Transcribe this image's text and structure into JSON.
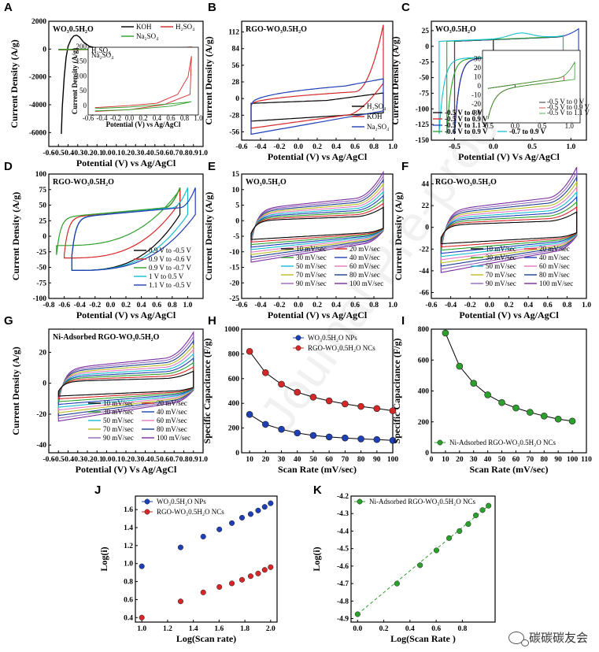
{
  "watermark": {
    "text": "碳碳碳友会",
    "icon": "wechat-icon",
    "diagonal": "Journal Pre-proof"
  },
  "chart_data": [
    {
      "id": "A",
      "type": "line",
      "title": "WO3.0.5H2O",
      "title_display": "WO₃0.5H₂O",
      "xlabel": "Potential (V) vs Ag/AgCl",
      "ylabel": "Current Density (A/g)",
      "xlim": [
        -0.6,
        1.0
      ],
      "ylim": [
        -7000,
        2000
      ],
      "xticks": [
        -0.6,
        -0.5,
        -0.4,
        -0.3,
        -0.2,
        -0.1,
        0.0,
        0.1,
        0.2,
        0.3,
        0.4,
        0.5,
        0.6,
        0.7,
        0.8,
        0.9,
        1.0
      ],
      "yticks": [
        -6000,
        -4000,
        -2000,
        0,
        2000
      ],
      "legend": [
        "KOH",
        "H2SO4",
        "Na2SO4"
      ],
      "legend_display": [
        "KOH",
        "H₂SO₄",
        "Na₂SO₄"
      ],
      "colors": [
        "#000000",
        "#d62728",
        "#2ca02c"
      ],
      "inset": {
        "xlabel": "Potential (V) vs Ag/AgCl",
        "ylabel": "Current Density (A/g)",
        "xlim": [
          -0.6,
          1.0
        ],
        "ylim": [
          -30,
          200
        ],
        "xticks": [
          -0.6,
          -0.4,
          -0.2,
          0.0,
          0.2,
          0.4,
          0.6,
          0.8,
          1.0
        ],
        "yticks": [
          0,
          50,
          100,
          150,
          200
        ],
        "legend": [
          "H2SO4",
          "Na2SO4"
        ],
        "legend_display": [
          "H₂SO₄",
          "Na₂SO₄"
        ]
      }
    },
    {
      "id": "B",
      "type": "line",
      "title": "RGO-WO3.0.5H2O",
      "title_display": "RGO-WO₃0.5H₂O",
      "xlabel": "Potential (V) vs Ag/AgCl",
      "ylabel": "Current Density (A/g)",
      "xlim": [
        -0.6,
        1.0
      ],
      "ylim": [
        -70,
        130
      ],
      "xticks": [
        -0.6,
        -0.4,
        -0.2,
        0.0,
        0.2,
        0.4,
        0.6,
        0.8,
        1.0
      ],
      "yticks": [
        -56,
        -28,
        0,
        28,
        56,
        84,
        112
      ],
      "legend": [
        "H2SO4",
        "KOH",
        "Na2SO4"
      ],
      "legend_display": [
        "H₂SO₄",
        "KOH",
        "Na₂SO₄"
      ],
      "colors": [
        "#000000",
        "#d62728",
        "#1f3fb5"
      ]
    },
    {
      "id": "C",
      "type": "line",
      "title": "WO3.0.5H2O",
      "title_display": "WO₃0.5H₂O",
      "xlabel": "Potential (V) Vs Ag/AgCl",
      "ylabel": "Current Density (A/g)",
      "xlim": [
        -0.8,
        1.2
      ],
      "ylim": [
        -150,
        40
      ],
      "xticks": [
        -0.5,
        0.0,
        0.5,
        1.0
      ],
      "yticks": [
        -150,
        -125,
        -100,
        -75,
        -50,
        -25,
        0,
        25
      ],
      "legend": [
        "-0.5 V to 0 V",
        "-0.5 V to 0.9 V",
        "-0.5 V to 1.1 V",
        "-0.6 V to 0.9 V",
        "-0.7 to 0.9 V"
      ],
      "colors": [
        "#000000",
        "#d62728",
        "#1f3fb5",
        "#2ca02c",
        "#17becf"
      ],
      "inset": {
        "xlim": [
          -0.6,
          1.2
        ],
        "ylim": [
          -40,
          40
        ],
        "xticks": [
          -0.5,
          0.0,
          0.5,
          1.0
        ],
        "yticks": [
          -30,
          -20,
          -10,
          0,
          10,
          20,
          30
        ],
        "legend": [
          "-0.5 V to 0 V",
          "-0.5 V to 0.9 V",
          "-0.5 V to 1.1 V"
        ]
      }
    },
    {
      "id": "D",
      "type": "line",
      "title": "RGO-WO3.0.5H2O",
      "title_display": "RGO-WO₃0.5H₂O",
      "xlabel": "Potential (V) vs Ag/AgCl",
      "ylabel": "Current Density (A/g)",
      "xlim": [
        -0.8,
        1.2
      ],
      "ylim": [
        -100,
        100
      ],
      "xticks": [
        -0.8,
        -0.6,
        -0.4,
        -0.2,
        0.0,
        0.2,
        0.4,
        0.6,
        0.8,
        1.0
      ],
      "yticks": [
        -100,
        -75,
        -50,
        -25,
        0,
        25,
        50,
        75,
        100
      ],
      "legend": [
        "0.9 V to -0.5 V",
        "0.9 V to -0.6 V",
        "0.9 V to -0.7 V",
        "1 V to 0.5 V",
        "1.1 V to -0.5 V"
      ],
      "colors": [
        "#000000",
        "#d62728",
        "#2ca02c",
        "#17becf",
        "#1f3fb5"
      ]
    },
    {
      "id": "E",
      "type": "line",
      "title": "WO3.0.5H2O",
      "title_display": "WO₃0.5H₂O",
      "xlabel": "Potential (V) vs Ag/AgCl",
      "ylabel": "Current Density (A/g)",
      "xlim": [
        -0.6,
        1.0
      ],
      "ylim": [
        -25,
        15
      ],
      "xticks": [
        -0.6,
        -0.4,
        -0.2,
        0.0,
        0.2,
        0.4,
        0.6,
        0.8,
        1.0
      ],
      "yticks": [
        -25,
        -20,
        -15,
        -10,
        -5,
        0,
        5,
        10,
        15
      ],
      "legend": [
        "10 mV/sec",
        "20 mV/sec",
        "30 mV/sec",
        "40 mV/sec",
        "50 mV/sec",
        "60 mV/sec",
        "70 mV/sec",
        "80 mV/sec",
        "90 mV/sec",
        "100 mV/sec"
      ]
    },
    {
      "id": "F",
      "type": "line",
      "title": "RGO-WO3.0.5H2O",
      "title_display": "RGO-WO₃0.5H₂O",
      "xlabel": "Potential (V) vs Ag/AgCl",
      "ylabel": "Current Density (A/g)",
      "xlim": [
        -0.6,
        1.0
      ],
      "ylim": [
        -72,
        54
      ],
      "xticks": [
        -0.6,
        -0.4,
        -0.2,
        0.0,
        0.2,
        0.4,
        0.6,
        0.8,
        1.0
      ],
      "yticks": [
        -66,
        -44,
        -22,
        0,
        22,
        44
      ],
      "legend": [
        "10 mV/sec",
        "20 mV/sec",
        "30 mV/sec",
        "40 mV/sec",
        "50 mV/sec",
        "60 mV/sec",
        "70 mV/sec",
        "80 mV/sec",
        "90 mV/sec",
        "100 mV/sec"
      ]
    },
    {
      "id": "G",
      "type": "line",
      "title": "Ni-Adsorbed RGO-WO3.0.5H2O",
      "title_display": "Ni-Adsorbed RGO-WO₃0.5H₂O",
      "xlabel": "Potential (V) Vs Ag/AgCl",
      "ylabel": "Current Density (A/g)",
      "xlim": [
        -0.6,
        1.0
      ],
      "ylim": [
        -45,
        35
      ],
      "xticks": [
        -0.6,
        -0.5,
        -0.4,
        -0.3,
        -0.2,
        -0.1,
        0.0,
        0.1,
        0.2,
        0.3,
        0.4,
        0.5,
        0.6,
        0.7,
        0.8,
        0.9,
        1.0
      ],
      "yticks": [
        -40,
        -20,
        0,
        20
      ],
      "legend": [
        "10 mV/sec",
        "20 mV/sec",
        "30 mV/sec",
        "40 mV/sec",
        "50 mV/sec",
        "60 mV/sec",
        "70 mV/sec",
        "80 mV/sec",
        "90 mV/sec",
        "100 mV/sec"
      ]
    },
    {
      "id": "H",
      "type": "line",
      "xlabel": "Scan Rate (mV/sec)",
      "ylabel": "Specific Capacitance (F/g)",
      "xlim": [
        5,
        100
      ],
      "ylim": [
        0,
        1000
      ],
      "xticks": [
        10,
        20,
        30,
        40,
        50,
        60,
        70,
        80,
        90,
        100
      ],
      "yticks": [
        0,
        200,
        400,
        600,
        800,
        1000
      ],
      "x": [
        10,
        20,
        30,
        40,
        50,
        60,
        70,
        80,
        90,
        100
      ],
      "series": [
        {
          "name": "WO3.0.5H2O NPs",
          "name_display": "WO₃0.5H₂O NPs",
          "color": "#1f3fb5",
          "values": [
            310,
            230,
            190,
            160,
            140,
            128,
            120,
            112,
            107,
            100
          ]
        },
        {
          "name": "RGO-WO3.0.5H2O NCs",
          "name_display": "RGO-WO₃0.5H₂O NCs",
          "color": "#d62728",
          "values": [
            820,
            648,
            555,
            490,
            450,
            420,
            395,
            375,
            358,
            340
          ]
        }
      ]
    },
    {
      "id": "I",
      "type": "line",
      "xlabel": "Scan Rate (mV/sec)",
      "ylabel": "Specific Capacitance (F/g)",
      "xlim": [
        0,
        110
      ],
      "ylim": [
        0,
        800
      ],
      "xticks": [
        0,
        10,
        20,
        30,
        40,
        50,
        60,
        70,
        80,
        90,
        100,
        110
      ],
      "yticks": [
        0,
        200,
        400,
        600,
        800
      ],
      "x": [
        10,
        20,
        30,
        40,
        50,
        60,
        70,
        80,
        90,
        100
      ],
      "series": [
        {
          "name": "Ni-Adsorbed RGO-WO3.0.5H2O NCs",
          "name_display": "Ni-Adsorbed RGO-WO₃0.5H₂O NCs",
          "color": "#2ca02c",
          "values": [
            775,
            560,
            450,
            375,
            325,
            290,
            262,
            238,
            218,
            205
          ]
        }
      ]
    },
    {
      "id": "J",
      "type": "scatter",
      "xlabel": "Log(Scan rate)",
      "ylabel": "Log(i)",
      "xlim": [
        0.95,
        2.05
      ],
      "ylim": [
        0.35,
        1.75
      ],
      "xticks": [
        1.0,
        1.2,
        1.4,
        1.6,
        1.8,
        2.0
      ],
      "yticks": [
        0.4,
        0.6,
        0.8,
        1.0,
        1.2,
        1.4,
        1.6
      ],
      "series": [
        {
          "name": "WO3.0.5H2O NPs",
          "name_display": "WO₃0.5H₂O NPs",
          "color": "#1f3fb5",
          "x": [
            1.0,
            1.301,
            1.477,
            1.602,
            1.699,
            1.778,
            1.845,
            1.903,
            1.954,
            2.0
          ],
          "y": [
            0.97,
            1.18,
            1.3,
            1.38,
            1.45,
            1.51,
            1.55,
            1.59,
            1.63,
            1.67
          ]
        },
        {
          "name": "RGO-WO3.0.5H2O NCs",
          "name_display": "RGO-WO₃0.5H₂O NCs",
          "color": "#d62728",
          "x": [
            1.0,
            1.301,
            1.477,
            1.602,
            1.699,
            1.778,
            1.845,
            1.903,
            1.954,
            2.0
          ],
          "y": [
            0.4,
            0.58,
            0.68,
            0.74,
            0.78,
            0.82,
            0.86,
            0.89,
            0.93,
            0.96
          ]
        }
      ]
    },
    {
      "id": "K",
      "type": "scatter",
      "xlabel": "Log(Scan Rate )",
      "ylabel": "Log(i)",
      "xlim": [
        -0.05,
        1.05
      ],
      "ylim": [
        -4.92,
        -4.2
      ],
      "xticks": [
        0.0,
        0.2,
        0.4,
        0.6,
        0.8
      ],
      "yticks": [
        -4.9,
        -4.8,
        -4.7,
        -4.6,
        -4.5,
        -4.4,
        -4.3,
        -4.2
      ],
      "series": [
        {
          "name": "Ni-Adsorbed RGO-WO3.0.5H2O NCs",
          "name_display": "Ni-Adsorbed RGO-WO₃0.5H₂O NCs",
          "color": "#2ca02c",
          "x": [
            0.0,
            0.301,
            0.477,
            0.602,
            0.699,
            0.778,
            0.845,
            0.903,
            0.954,
            1.0
          ],
          "y": [
            -4.875,
            -4.7,
            -4.595,
            -4.51,
            -4.44,
            -4.4,
            -4.36,
            -4.31,
            -4.28,
            -4.255
          ]
        }
      ]
    }
  ]
}
